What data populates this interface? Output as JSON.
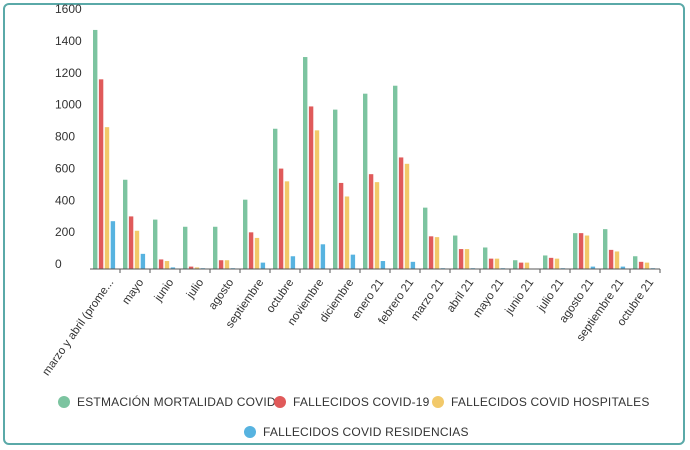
{
  "chart_data": {
    "type": "bar",
    "categories": [
      "marzo y abril (prome...",
      "mayo",
      "junio",
      "julio",
      "agosto",
      "septiembre",
      "octubre",
      "noviembre",
      "diciembre",
      "enero 21",
      "febrero 21",
      "marzo 21",
      "abril 21",
      "mayo 21",
      "junio 21",
      "julio 21",
      "agosto 21",
      "septiembre 21",
      "octubre 21"
    ],
    "ylim": [
      0,
      1600
    ],
    "yticks": [
      0,
      200,
      400,
      600,
      800,
      1000,
      1200,
      1400,
      1600
    ],
    "series": [
      {
        "name": "ESTMACIÓN MORTALIDAD COVID",
        "color": "#7cc4a0",
        "values": [
          1500,
          560,
          310,
          265,
          265,
          435,
          880,
          1330,
          1000,
          1100,
          1150,
          385,
          210,
          135,
          55,
          85,
          225,
          250,
          80
        ]
      },
      {
        "name": "FALLECIDOS COVID-19",
        "color": "#e05a5a",
        "values": [
          1190,
          330,
          60,
          15,
          55,
          230,
          630,
          1020,
          540,
          595,
          700,
          205,
          125,
          65,
          40,
          70,
          225,
          120,
          45
        ]
      },
      {
        "name": "FALLECIDOS COVID HOSPITALES",
        "color": "#f2c96a",
        "values": [
          890,
          240,
          50,
          10,
          55,
          195,
          550,
          870,
          455,
          545,
          660,
          200,
          125,
          65,
          40,
          65,
          210,
          110,
          40
        ]
      },
      {
        "name": "FALLECIDOS COVID RESIDENCIAS",
        "color": "#57b3e0",
        "values": [
          300,
          95,
          10,
          5,
          5,
          40,
          80,
          155,
          90,
          50,
          45,
          5,
          5,
          5,
          0,
          5,
          15,
          15,
          5
        ]
      }
    ],
    "legend_position": "bottom",
    "grid": false
  }
}
